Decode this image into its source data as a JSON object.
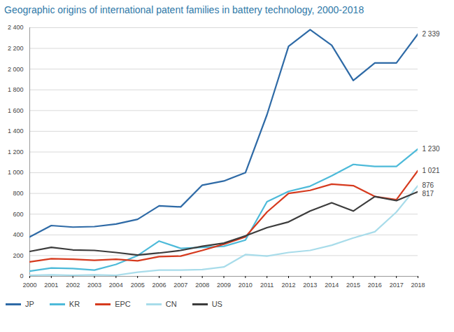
{
  "chart_data": {
    "type": "line",
    "title": "Geographic origins of international patent families in battery technology, 2000-2018",
    "x": [
      2000,
      2001,
      2002,
      2003,
      2004,
      2005,
      2006,
      2007,
      2008,
      2009,
      2010,
      2011,
      2012,
      2013,
      2014,
      2015,
      2016,
      2017,
      2018
    ],
    "xlim": [
      2000,
      2018
    ],
    "xticks": [
      2000,
      2001,
      2002,
      2003,
      2004,
      2005,
      2006,
      2007,
      2008,
      2009,
      2010,
      2011,
      2012,
      2013,
      2014,
      2015,
      2016,
      2017,
      2018
    ],
    "ylim": [
      0,
      2400
    ],
    "yticks": [
      0,
      200,
      400,
      600,
      800,
      {
        "value": 1000,
        "label": "1 000"
      },
      {
        "value": 1200,
        "label": "1 200"
      },
      {
        "value": 1400,
        "label": "1 400"
      },
      {
        "value": 1600,
        "label": "1 600"
      },
      {
        "value": 1800,
        "label": "1 800"
      },
      {
        "value": 2000,
        "label": "2 000"
      },
      {
        "value": 2200,
        "label": "2 200"
      },
      {
        "value": 2400,
        "label": "2 400"
      }
    ],
    "grid": true,
    "legend": "bottom-left",
    "series": [
      {
        "name": "JP",
        "color": "#2e6aa6",
        "end_label": "2 339",
        "values": [
          380,
          490,
          475,
          480,
          505,
          550,
          680,
          670,
          880,
          920,
          1000,
          1560,
          2220,
          2380,
          2230,
          1890,
          2060,
          2060,
          2339
        ]
      },
      {
        "name": "KR",
        "color": "#4dbad9",
        "end_label": "1 230",
        "values": [
          50,
          80,
          75,
          60,
          115,
          200,
          340,
          270,
          280,
          290,
          350,
          720,
          820,
          870,
          970,
          1080,
          1060,
          1060,
          1230
        ]
      },
      {
        "name": "EPC",
        "color": "#d63a1e",
        "end_label": "1 021",
        "values": [
          140,
          170,
          165,
          155,
          165,
          150,
          190,
          195,
          250,
          310,
          380,
          620,
          800,
          830,
          890,
          875,
          770,
          740,
          1021
        ]
      },
      {
        "name": "CN",
        "color": "#a8dcea",
        "end_label": "876",
        "values": [
          10,
          15,
          10,
          15,
          10,
          40,
          60,
          60,
          65,
          90,
          210,
          195,
          230,
          250,
          300,
          370,
          430,
          620,
          876
        ]
      },
      {
        "name": "US",
        "color": "#3c3c3c",
        "end_label": "817",
        "values": [
          240,
          280,
          255,
          250,
          230,
          205,
          225,
          250,
          290,
          320,
          390,
          470,
          525,
          630,
          710,
          630,
          770,
          730,
          817
        ]
      }
    ]
  }
}
